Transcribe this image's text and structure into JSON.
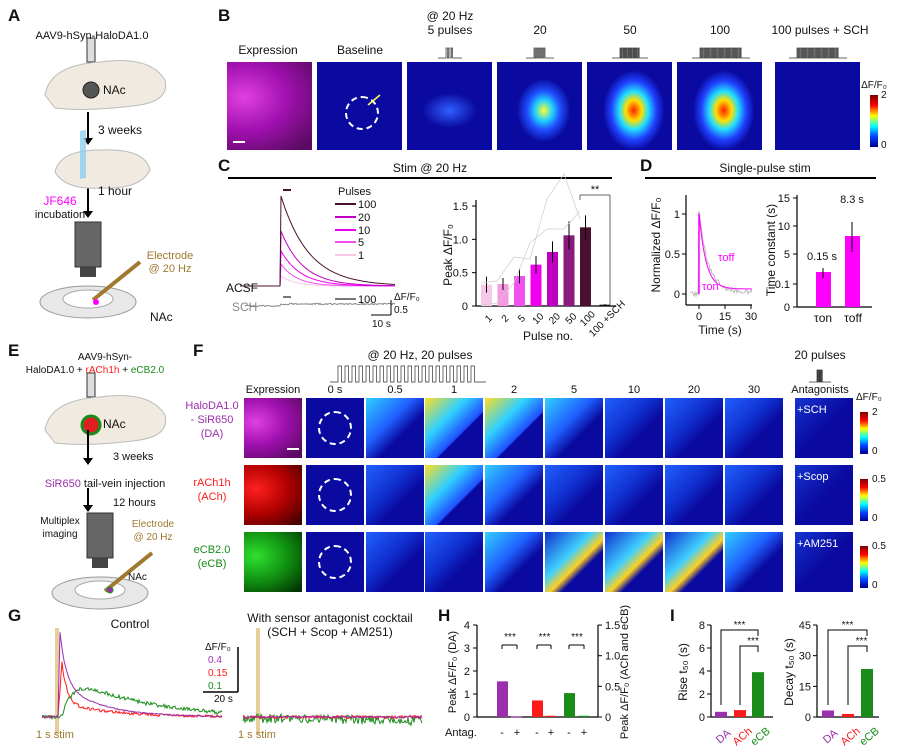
{
  "colors": {
    "da": "#9b2fae",
    "ach": "#ff1a1a",
    "ecb": "#1a8c1a",
    "jf646": "#ff00ff",
    "electrode": "#a07830",
    "stim": "#e6cf9a"
  },
  "panel_a": {
    "label": "A",
    "virus": "AAV9-hSyn-HaloDA1.0",
    "region": "NAc",
    "step1": "3 weeks",
    "dye": "JF646",
    "dye_suffix": "incubation",
    "step2": "1 hour",
    "electrode": "Electrode",
    "electrode_freq": "@ 20 Hz",
    "region2": "NAc"
  },
  "panel_b": {
    "label": "B",
    "columns": [
      "Expression",
      "Baseline",
      "@ 20 Hz",
      "5 pulses",
      "20",
      "50",
      "100",
      "100 pulses + SCH"
    ],
    "colorbar": {
      "title": "ΔF/F₀",
      "max": "2",
      "min": "0"
    }
  },
  "panel_c": {
    "label": "C",
    "title": "Stim @ 20 Hz",
    "legend_title": "Pulses",
    "legend": [
      "100",
      "20",
      "10",
      "5",
      "1"
    ],
    "acsf": "ACSF",
    "sch": "SCH",
    "sch_legend": "100",
    "scale_y": "ΔF/F₀",
    "scale_y_val": "0.5",
    "scale_x": "10 s"
  },
  "panel_d": {
    "label": "D",
    "title": "Single-pulse stim",
    "tau_on": "τon",
    "tau_off": "τoff"
  },
  "panel_e": {
    "label": "E",
    "virus1": "AAV9-hSyn-",
    "virus2a": "HaloDA1.0 + ",
    "virus2b": "rACh1h",
    "virus2c": " + ",
    "virus2d": "eCB2.0",
    "region": "NAc",
    "step1": "3 weeks",
    "dye": "SiR650",
    "dye_suffix": " tail-vein injection",
    "step2": "12 hours",
    "imaging1": "Multiplex",
    "imaging2": "imaging",
    "electrode": "Electrode",
    "electrode_freq": "@ 20 Hz",
    "region2": "NAc"
  },
  "panel_f": {
    "label": "F",
    "stim_title": "@ 20 Hz, 20 pulses",
    "antag_title": "20 pulses",
    "antag_header": "Antagonists",
    "columns": [
      "Expression",
      "0 s",
      "0.5",
      "1",
      "2",
      "5",
      "10",
      "20",
      "30"
    ],
    "rows": [
      {
        "name1": "HaloDA1.0",
        "name2": "- SiR650",
        "name3": "(DA)",
        "antagonist": "+SCH",
        "cbar_max": "2",
        "cbar_min": "0"
      },
      {
        "name1": "rACh1h",
        "name2": "(ACh)",
        "antagonist": "+Scop",
        "cbar_max": "0.5",
        "cbar_min": "0"
      },
      {
        "name1": "eCB2.0",
        "name2": "(eCB)",
        "antagonist": "+AM251",
        "cbar_max": "0.5",
        "cbar_min": "0"
      }
    ],
    "colorbar_title": "ΔF/F₀"
  },
  "panel_g": {
    "label": "G",
    "control": "Control",
    "cocktail1": "With sensor antagonist cocktail",
    "cocktail2": "(SCH + Scop + AM251)",
    "stim": "1 s stim",
    "stim2": "1 s stim",
    "scale_title": "ΔF/F₀",
    "scale_da": "0.4",
    "scale_ach": "0.15",
    "scale_ecb": "0.1",
    "scale_x": "20 s"
  },
  "panel_h": {
    "label": "H",
    "antag": "Antag.",
    "minus": "-",
    "plus": "+",
    "sig": "***"
  },
  "panel_i": {
    "label": "I",
    "sig": "***"
  },
  "chart_data": [
    {
      "id": "C",
      "type": "bar",
      "xlabel": "Pulse no.",
      "ylabel": "Peak ΔF/F₀",
      "categories": [
        "1",
        "2",
        "5",
        "10",
        "20",
        "50",
        "100",
        "100 +SCH"
      ],
      "values": [
        0.32,
        0.33,
        0.45,
        0.62,
        0.81,
        1.06,
        1.18,
        0.02
      ],
      "errors": [
        0.12,
        0.09,
        0.11,
        0.13,
        0.16,
        0.21,
        0.18,
        0.01
      ],
      "ylim": [
        0,
        1.6
      ],
      "yticks": [
        "0",
        "0.5",
        "1.0",
        "1.5"
      ],
      "significance": "**",
      "colors": [
        "#f8c8e8",
        "#f59ae0",
        "#f050f0",
        "#f000f0",
        "#c000c0",
        "#8a1a7e",
        "#4a1030",
        "#111111"
      ]
    },
    {
      "id": "D-trace",
      "type": "line",
      "xlabel": "Time (s)",
      "ylabel": "Normalized ΔF/F₀",
      "xticks": [
        "0",
        "15",
        "30"
      ],
      "yticks": [
        "0",
        "0.5",
        "1"
      ]
    },
    {
      "id": "D-bar",
      "type": "bar",
      "ylabel": "Time constant (s)",
      "categories": [
        "τon",
        "τoff"
      ],
      "values": [
        0.15,
        8.3
      ],
      "labels": [
        "0.15 s",
        "8.3 s"
      ],
      "yticks": [
        "0",
        "0.1",
        "5",
        "10",
        "15"
      ]
    },
    {
      "id": "H",
      "type": "bar",
      "ylabel_left": "Peak ΔF/F₀ (DA)",
      "ylabel_right": "Peak ΔF/F₀ (ACh and eCB)",
      "yticks_left": [
        "0",
        "1",
        "2",
        "3",
        "4"
      ],
      "yticks_right": [
        "0",
        "0.5",
        "1.0",
        "1.5"
      ],
      "series": [
        {
          "name": "DA",
          "values": [
            1.55,
            0.02
          ],
          "axis": "left"
        },
        {
          "name": "ACh",
          "values": [
            0.27,
            0.02
          ],
          "axis": "right"
        },
        {
          "name": "eCB",
          "values": [
            0.39,
            0.02
          ],
          "axis": "right"
        }
      ]
    },
    {
      "id": "I-rise",
      "type": "bar",
      "ylabel": "Rise t₅₀ (s)",
      "categories": [
        "DA",
        "ACh",
        "eCB"
      ],
      "values": [
        0.45,
        0.6,
        3.9
      ],
      "yticks": [
        "0",
        "2",
        "4",
        "6",
        "8"
      ],
      "ylim": [
        0,
        8
      ]
    },
    {
      "id": "I-decay",
      "type": "bar",
      "ylabel": "Decay t₅₀ (s)",
      "categories": [
        "DA",
        "ACh",
        "eCB"
      ],
      "values": [
        3.2,
        1.5,
        23.5
      ],
      "yticks": [
        "0",
        "15",
        "30",
        "45"
      ],
      "ylim": [
        0,
        45
      ]
    }
  ]
}
